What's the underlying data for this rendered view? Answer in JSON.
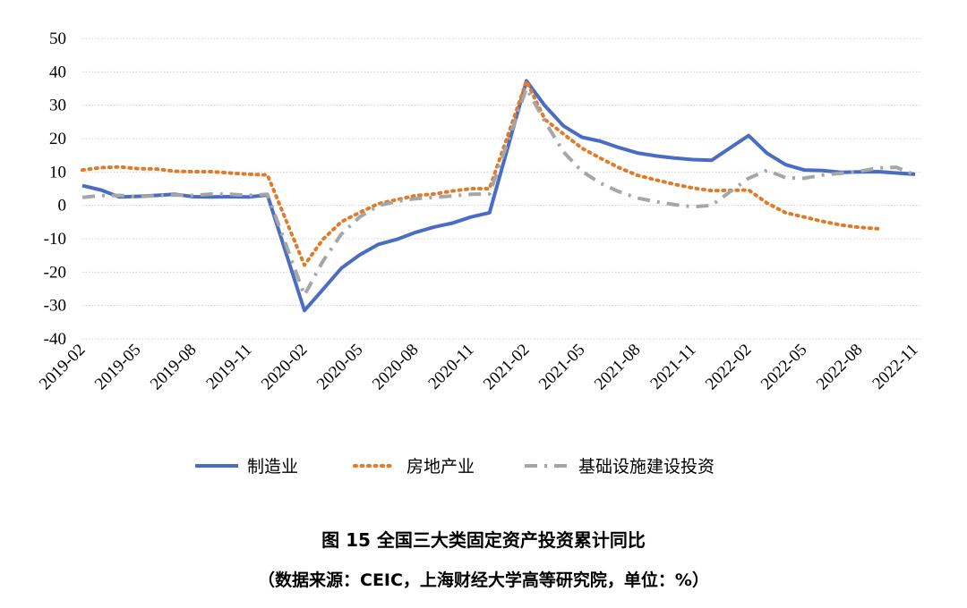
{
  "chart_data": {
    "type": "line",
    "title": "图 15 全国三大类固定资产投资累计同比",
    "subtitle": "（数据来源：CEIC，上海财经大学高等研究院，单位：%）",
    "xlabel": "",
    "ylabel": "",
    "ylim": [
      -40,
      50
    ],
    "yticks": [
      50,
      40,
      30,
      20,
      10,
      0,
      -10,
      -20,
      -30,
      -40
    ],
    "grid": true,
    "legend_position": "bottom",
    "categories": [
      "2019-02",
      "2019-03",
      "2019-04",
      "2019-05",
      "2019-06",
      "2019-07",
      "2019-08",
      "2019-09",
      "2019-10",
      "2019-11",
      "2019-12",
      "2020-01",
      "2020-02",
      "2020-03",
      "2020-04",
      "2020-05",
      "2020-06",
      "2020-07",
      "2020-08",
      "2020-09",
      "2020-10",
      "2020-11",
      "2020-12",
      "2021-01",
      "2021-02",
      "2021-03",
      "2021-04",
      "2021-05",
      "2021-06",
      "2021-07",
      "2021-08",
      "2021-09",
      "2021-10",
      "2021-11",
      "2021-12",
      "2022-01",
      "2022-02",
      "2022-03",
      "2022-04",
      "2022-05",
      "2022-06",
      "2022-07",
      "2022-08",
      "2022-09",
      "2022-10",
      "2022-11"
    ],
    "xtick_labels": [
      "2019-02",
      "2019-05",
      "2019-08",
      "2019-11",
      "2020-02",
      "2020-05",
      "2020-08",
      "2020-11",
      "2021-02",
      "2021-05",
      "2021-08",
      "2021-11",
      "2022-02",
      "2022-05",
      "2022-08",
      "2022-11"
    ],
    "series": [
      {
        "name": "制造业",
        "color": "#4A6DC4",
        "style": "solid",
        "values": [
          5.9,
          4.6,
          2.5,
          2.7,
          3.0,
          3.3,
          2.6,
          2.5,
          2.6,
          2.5,
          3.1,
          null,
          -31.5,
          -25.2,
          -18.8,
          -14.8,
          -11.7,
          -10.2,
          -8.1,
          -6.5,
          -5.3,
          -3.5,
          -2.2,
          null,
          37.3,
          29.8,
          23.8,
          20.4,
          19.2,
          17.3,
          15.7,
          14.8,
          14.2,
          13.7,
          13.5,
          null,
          20.9,
          15.6,
          12.2,
          10.6,
          10.4,
          9.9,
          10.0,
          10.1,
          9.7,
          9.3
        ]
      },
      {
        "name": "房地产业",
        "color": "#E07B2A",
        "style": "dotted",
        "values": [
          10.6,
          11.3,
          11.5,
          11.0,
          10.9,
          10.2,
          10.1,
          10.1,
          9.7,
          9.3,
          9.1,
          null,
          -17.9,
          -10.2,
          -4.9,
          -2.1,
          0.5,
          1.7,
          2.9,
          3.4,
          4.3,
          5.0,
          5.0,
          null,
          37.2,
          25.7,
          21.4,
          17.1,
          14.1,
          11.3,
          9.0,
          7.6,
          6.3,
          5.2,
          4.4,
          null,
          4.6,
          0.7,
          -2.2,
          -3.5,
          -4.8,
          -5.9,
          -6.6,
          -7.0,
          null,
          null
        ]
      },
      {
        "name": "基础设施建设投资",
        "color": "#A6A6A6",
        "style": "dashdot",
        "values": [
          2.4,
          2.9,
          3.0,
          2.6,
          2.9,
          3.1,
          3.0,
          3.4,
          3.3,
          3.0,
          3.3,
          null,
          -26.9,
          -16.7,
          -8.6,
          -3.4,
          -0.1,
          1.2,
          2.0,
          2.4,
          2.8,
          3.3,
          3.4,
          null,
          35.0,
          25.1,
          16.0,
          10.2,
          6.6,
          4.1,
          2.2,
          1.1,
          0.2,
          -0.4,
          0.0,
          null,
          8.1,
          10.5,
          8.3,
          8.1,
          9.1,
          9.6,
          10.2,
          11.2,
          11.4,
          9.1
        ]
      }
    ]
  }
}
